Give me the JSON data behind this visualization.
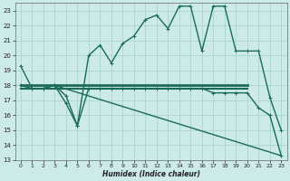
{
  "xlabel": "Humidex (Indice chaleur)",
  "bg_color": "#cceae7",
  "grid_color": "#aad4d0",
  "line_color": "#1a6b5a",
  "xlim": [
    -0.5,
    23.5
  ],
  "ylim": [
    13,
    23.5
  ],
  "yticks": [
    13,
    14,
    15,
    16,
    17,
    18,
    19,
    20,
    21,
    22,
    23
  ],
  "xticks": [
    0,
    1,
    2,
    3,
    4,
    5,
    6,
    7,
    8,
    9,
    10,
    11,
    12,
    13,
    14,
    15,
    16,
    17,
    18,
    19,
    20,
    21,
    22,
    23
  ],
  "line1_x": [
    0,
    1,
    2,
    3,
    4,
    5,
    6,
    7,
    8,
    9,
    10,
    11,
    12,
    13,
    14,
    15,
    16,
    17,
    18,
    19,
    20,
    21,
    22,
    23
  ],
  "line1_y": [
    19.3,
    17.8,
    17.8,
    18.0,
    17.3,
    15.3,
    20.0,
    20.7,
    19.5,
    20.8,
    21.3,
    22.4,
    22.7,
    21.8,
    23.3,
    23.3,
    20.3,
    23.3,
    23.3,
    20.3,
    20.3,
    20.3,
    17.2,
    15.0
  ],
  "line2_x": [
    0,
    1,
    2,
    3,
    4,
    5,
    6,
    7,
    8,
    9,
    10,
    11,
    12,
    13,
    14,
    15,
    16,
    17,
    18,
    19,
    20,
    21,
    22,
    23
  ],
  "line2_y": [
    18.0,
    17.8,
    17.8,
    18.0,
    16.8,
    15.3,
    17.8,
    17.8,
    17.8,
    17.8,
    17.8,
    17.8,
    17.8,
    17.8,
    17.8,
    17.8,
    17.8,
    17.5,
    17.5,
    17.5,
    17.5,
    16.5,
    16.0,
    13.3
  ],
  "line3_x": [
    0,
    20
  ],
  "line3_y": [
    18.0,
    18.0
  ],
  "line4_x": [
    3,
    23
  ],
  "line4_y": [
    18.0,
    13.3
  ],
  "line5_x": [
    0,
    20
  ],
  "line5_y": [
    18.0,
    18.0
  ]
}
